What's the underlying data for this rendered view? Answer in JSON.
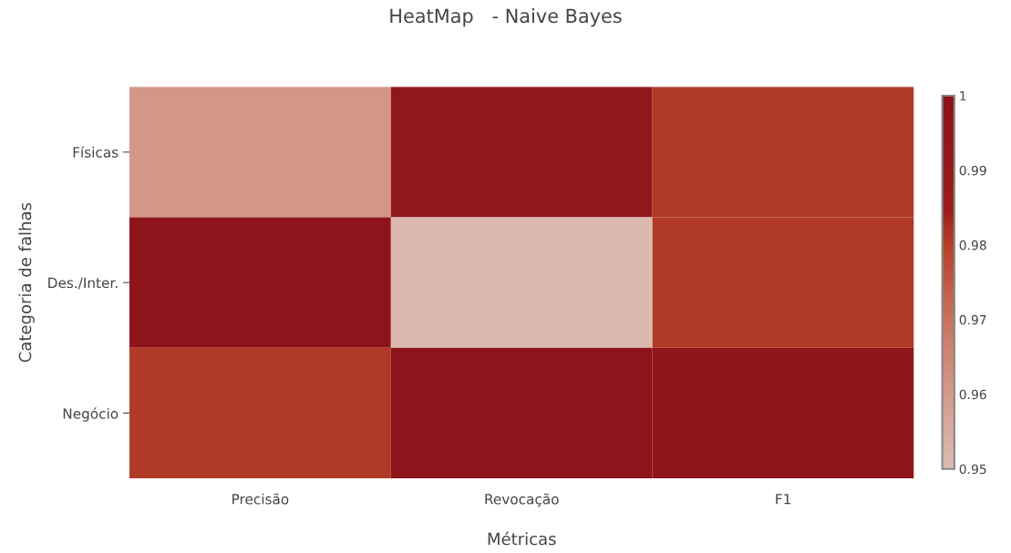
{
  "chart_data": {
    "type": "heatmap",
    "title": "HeatMap   - Naive Bayes",
    "xlabel": "Métricas",
    "ylabel": "Categoria de falhas",
    "categories": [
      "Precisão",
      "Revocação",
      "F1"
    ],
    "y_categories": [
      "Físicas",
      "Des./Inter.",
      "Negócio"
    ],
    "cells": [
      [
        0.961,
        0.993,
        0.981
      ],
      [
        0.997,
        0.951,
        0.981
      ],
      [
        0.981,
        0.997,
        0.995
      ]
    ],
    "clim": [
      0.95,
      1
    ],
    "cticks": [
      0.95,
      0.96,
      0.97,
      0.98,
      0.99,
      1
    ]
  }
}
